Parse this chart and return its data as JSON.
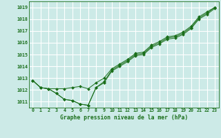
{
  "bg_color": "#cceae7",
  "grid_color": "#ffffff",
  "line_color": "#1a6e1a",
  "marker_color": "#1a6e1a",
  "title": "Graphe pression niveau de la mer (hPa)",
  "ylim": [
    1010.5,
    1019.5
  ],
  "yticks": [
    1011,
    1012,
    1013,
    1014,
    1015,
    1016,
    1017,
    1018,
    1019
  ],
  "xlim": [
    -0.5,
    23.5
  ],
  "series": [
    [
      1012.8,
      1012.2,
      1012.1,
      1011.7,
      1011.2,
      1011.1,
      1010.8,
      1010.7,
      1012.2,
      1012.6,
      1013.6,
      1014.0,
      1014.4,
      1014.9,
      1015.0,
      1015.6,
      1015.9,
      1016.3,
      1016.4,
      1016.7,
      1017.2,
      1018.0,
      1018.4,
      1018.9
    ],
    [
      1012.8,
      1012.2,
      1012.1,
      1012.1,
      1012.1,
      1012.2,
      1012.3,
      1012.1,
      1012.6,
      1013.0,
      1013.8,
      1014.2,
      1014.6,
      1015.1,
      1015.2,
      1015.8,
      1016.1,
      1016.5,
      1016.6,
      1016.9,
      1017.4,
      1018.2,
      1018.6,
      1019.0
    ],
    [
      1012.8,
      1012.2,
      1012.1,
      1011.7,
      1011.2,
      1011.1,
      1010.8,
      1010.7,
      1012.2,
      1012.7,
      1013.7,
      1014.1,
      1014.5,
      1015.0,
      1015.1,
      1015.7,
      1016.0,
      1016.4,
      1016.5,
      1016.8,
      1017.3,
      1018.1,
      1018.5,
      1019.0
    ]
  ]
}
